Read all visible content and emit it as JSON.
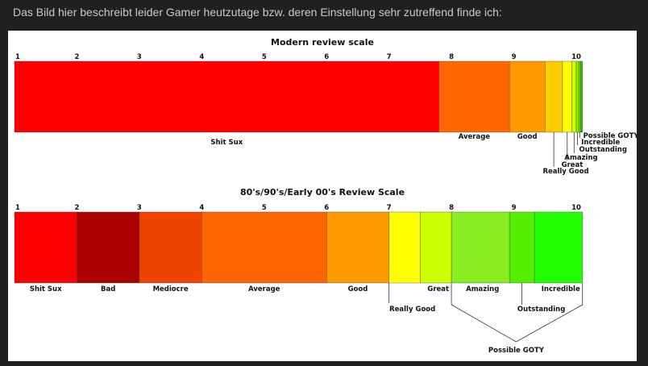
{
  "post": {
    "caption": "Das Bild hier beschreibt leider Gamer heutzutage bzw. deren Einstellung sehr zutreffend finde ich:"
  },
  "chart_data": [
    {
      "type": "bar",
      "title": "Modern review scale",
      "ticks": [
        "1",
        "2",
        "3",
        "4",
        "5",
        "6",
        "7",
        "8",
        "9",
        "10"
      ],
      "xlim": [
        1,
        10.1
      ],
      "segments": [
        {
          "label": "Shit Sux",
          "start": 1.0,
          "end": 7.8,
          "color": "#ff0000"
        },
        {
          "label": "Average",
          "start": 7.8,
          "end": 8.93,
          "color": "#ff6600"
        },
        {
          "label": "Good",
          "start": 8.93,
          "end": 9.5,
          "color": "#ff9900"
        },
        {
          "label": "Really Good",
          "start": 9.5,
          "end": 9.78,
          "color": "#ffcc00"
        },
        {
          "label": "Great",
          "start": 9.78,
          "end": 9.93,
          "color": "#ffff00"
        },
        {
          "label": "Amazing",
          "start": 9.93,
          "end": 10.0,
          "color": "#ccff00"
        },
        {
          "label": "Outstanding",
          "start": 10.0,
          "end": 10.04,
          "color": "#99ee00"
        },
        {
          "label": "Incredible",
          "start": 10.04,
          "end": 10.07,
          "color": "#66dd00"
        },
        {
          "label": "Possible GOTY",
          "start": 10.07,
          "end": 10.1,
          "color": "#33cc00"
        }
      ]
    },
    {
      "type": "bar",
      "title": "80's/90's/Early 00's Review Scale",
      "ticks": [
        "1",
        "2",
        "3",
        "4",
        "5",
        "6",
        "7",
        "8",
        "9",
        "10"
      ],
      "xlim": [
        1,
        10.1
      ],
      "segments": [
        {
          "label": "Shit Sux",
          "start": 1.0,
          "end": 2.0,
          "color": "#ff0000"
        },
        {
          "label": "Bad",
          "start": 2.0,
          "end": 3.0,
          "color": "#aa0000"
        },
        {
          "label": "Mediocre",
          "start": 3.0,
          "end": 4.0,
          "color": "#ee4400"
        },
        {
          "label": "Average",
          "start": 4.0,
          "end": 6.0,
          "color": "#ff6600"
        },
        {
          "label": "Good",
          "start": 6.0,
          "end": 7.0,
          "color": "#ff9900"
        },
        {
          "label": "Really Good",
          "start": 7.0,
          "end": 7.5,
          "color": "#ffff00"
        },
        {
          "label": "Great",
          "start": 7.5,
          "end": 8.0,
          "color": "#ccff00"
        },
        {
          "label": "Amazing",
          "start": 8.0,
          "end": 8.93,
          "color": "#88ee22"
        },
        {
          "label": "Outstanding",
          "start": 8.93,
          "end": 9.33,
          "color": "#55ee00"
        },
        {
          "label": "Incredible",
          "start": 9.33,
          "end": 10.1,
          "color": "#22ff00"
        }
      ],
      "annotations": [
        {
          "label": "Possible GOTY",
          "covers": [
            "Amazing",
            "Outstanding",
            "Incredible"
          ]
        }
      ]
    }
  ]
}
